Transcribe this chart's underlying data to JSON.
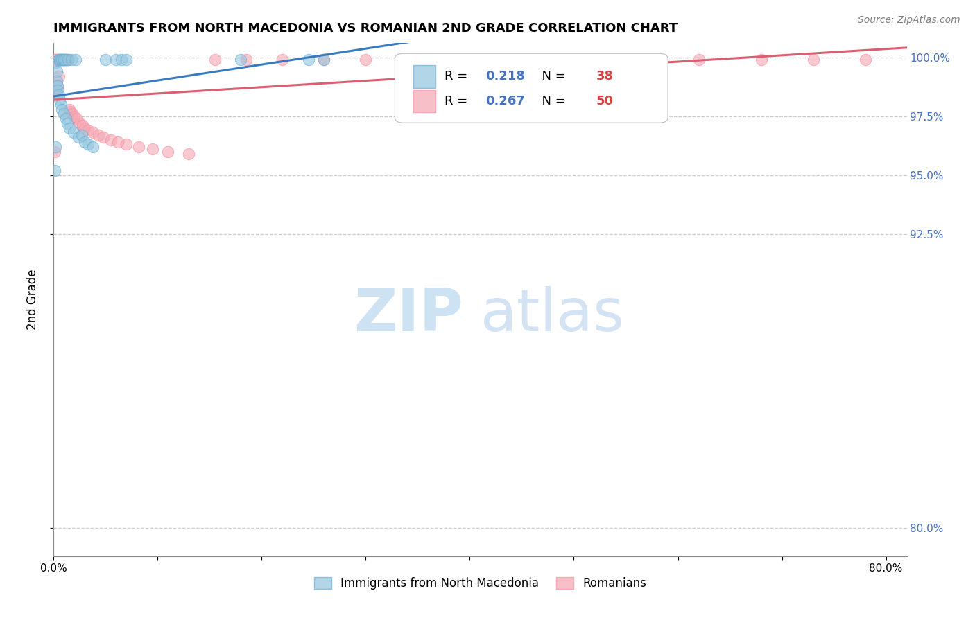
{
  "title": "IMMIGRANTS FROM NORTH MACEDONIA VS ROMANIAN 2ND GRADE CORRELATION CHART",
  "source": "Source: ZipAtlas.com",
  "ylabel": "2nd Grade",
  "xlim": [
    0.0,
    0.82
  ],
  "ylim": [
    0.788,
    1.006
  ],
  "yticks": [
    0.8,
    0.925,
    0.95,
    0.975,
    1.0
  ],
  "ytick_labels": [
    "80.0%",
    "92.5%",
    "95.0%",
    "97.5%",
    "100.0%"
  ],
  "blue_R": "0.218",
  "blue_N": "38",
  "pink_R": "0.267",
  "pink_N": "50",
  "blue_color": "#92c5de",
  "pink_color": "#f4a6b2",
  "blue_edge": "#6baed6",
  "pink_edge": "#fb8fa0",
  "blue_line": "#3a7abf",
  "pink_line": "#d96070",
  "right_axis_color": "#4472c4",
  "n_color": "#d94040",
  "watermark_zip_color": "#c5ddf0",
  "watermark_atlas_color": "#a8c8e8",
  "background": "#ffffff",
  "grid_color": "#cccccc",
  "blue_x": [
    0.001,
    0.002,
    0.002,
    0.003,
    0.003,
    0.004,
    0.004,
    0.005,
    0.005,
    0.006,
    0.006,
    0.007,
    0.007,
    0.008,
    0.008,
    0.009,
    0.01,
    0.01,
    0.011,
    0.012,
    0.013,
    0.014,
    0.015,
    0.017,
    0.019,
    0.021,
    0.024,
    0.027,
    0.03,
    0.033,
    0.038,
    0.05,
    0.06,
    0.065,
    0.07,
    0.18,
    0.245,
    0.26
  ],
  "blue_y": [
    0.952,
    0.962,
    0.998,
    0.994,
    0.99,
    0.988,
    0.986,
    0.999,
    0.984,
    0.999,
    0.982,
    0.999,
    0.98,
    0.999,
    0.978,
    0.999,
    0.999,
    0.976,
    0.999,
    0.974,
    0.972,
    0.999,
    0.97,
    0.999,
    0.968,
    0.999,
    0.966,
    0.967,
    0.964,
    0.963,
    0.962,
    0.999,
    0.999,
    0.999,
    0.999,
    0.999,
    0.999,
    0.999
  ],
  "pink_x": [
    0.001,
    0.002,
    0.003,
    0.003,
    0.004,
    0.004,
    0.005,
    0.005,
    0.006,
    0.007,
    0.008,
    0.009,
    0.01,
    0.011,
    0.012,
    0.013,
    0.014,
    0.015,
    0.016,
    0.018,
    0.02,
    0.022,
    0.025,
    0.028,
    0.03,
    0.033,
    0.038,
    0.043,
    0.048,
    0.055,
    0.062,
    0.07,
    0.082,
    0.095,
    0.11,
    0.13,
    0.155,
    0.185,
    0.22,
    0.26,
    0.3,
    0.35,
    0.4,
    0.45,
    0.5,
    0.56,
    0.62,
    0.68,
    0.73,
    0.78
  ],
  "pink_y": [
    0.96,
    0.999,
    0.999,
    0.984,
    0.999,
    0.988,
    0.999,
    0.992,
    0.999,
    0.999,
    0.999,
    0.999,
    0.999,
    0.999,
    0.999,
    0.999,
    0.999,
    0.978,
    0.977,
    0.976,
    0.975,
    0.974,
    0.972,
    0.971,
    0.97,
    0.969,
    0.968,
    0.967,
    0.966,
    0.965,
    0.964,
    0.963,
    0.962,
    0.961,
    0.96,
    0.959,
    0.999,
    0.999,
    0.999,
    0.999,
    0.999,
    0.999,
    0.999,
    0.999,
    0.999,
    0.999,
    0.999,
    0.999,
    0.999,
    0.999
  ]
}
